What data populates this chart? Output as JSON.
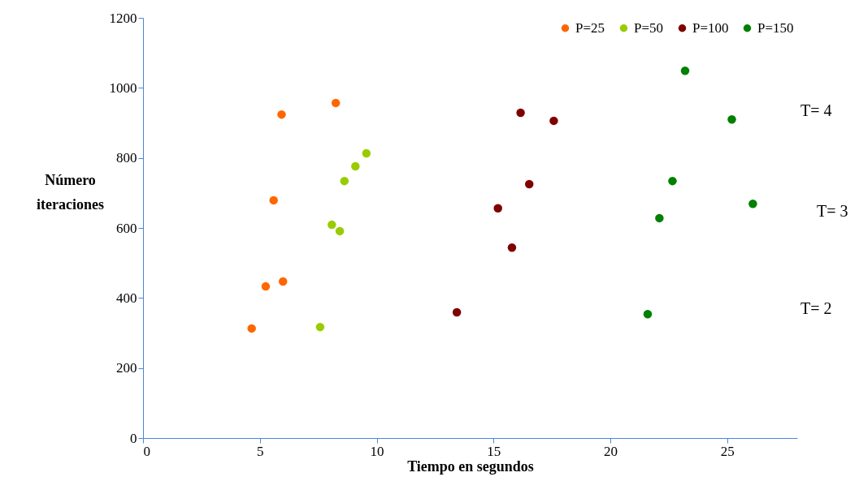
{
  "chart_data": {
    "type": "scatter",
    "xlabel": "Tiempo en segundos",
    "ylabel": "Número iteraciones",
    "xlim": [
      0,
      28
    ],
    "xticks": [
      0,
      5,
      10,
      15,
      20,
      25
    ],
    "ylim": [
      0,
      1200
    ],
    "yticks": [
      0,
      200,
      400,
      600,
      800,
      1000,
      1200
    ],
    "grid": false,
    "legend": "top right",
    "marker": "circle",
    "series": [
      {
        "name": "P=25",
        "color": "#ff6600",
        "x": [
          5.93,
          8.25,
          5.59,
          5.25,
          5.99,
          4.65
        ],
        "values": [
          924,
          957,
          679,
          433,
          447,
          313
        ]
      },
      {
        "name": "P=50",
        "color": "#99cc00",
        "x": [
          9.56,
          9.09,
          8.62,
          8.08,
          8.42,
          7.58
        ],
        "values": [
          813,
          776,
          734,
          609,
          591,
          317
        ]
      },
      {
        "name": "P=100",
        "color": "#800000",
        "x": [
          16.16,
          17.58,
          16.53,
          15.19,
          15.79,
          13.43
        ],
        "values": [
          929,
          906,
          725,
          656,
          544,
          359
        ]
      },
      {
        "name": "P=150",
        "color": "#008000",
        "x": [
          23.2,
          25.2,
          22.66,
          26.1,
          22.1,
          21.6
        ],
        "values": [
          1049,
          910,
          734,
          669,
          628,
          354
        ]
      }
    ],
    "annotations": [
      "T= 4",
      "T= 3",
      "T= 2"
    ]
  }
}
